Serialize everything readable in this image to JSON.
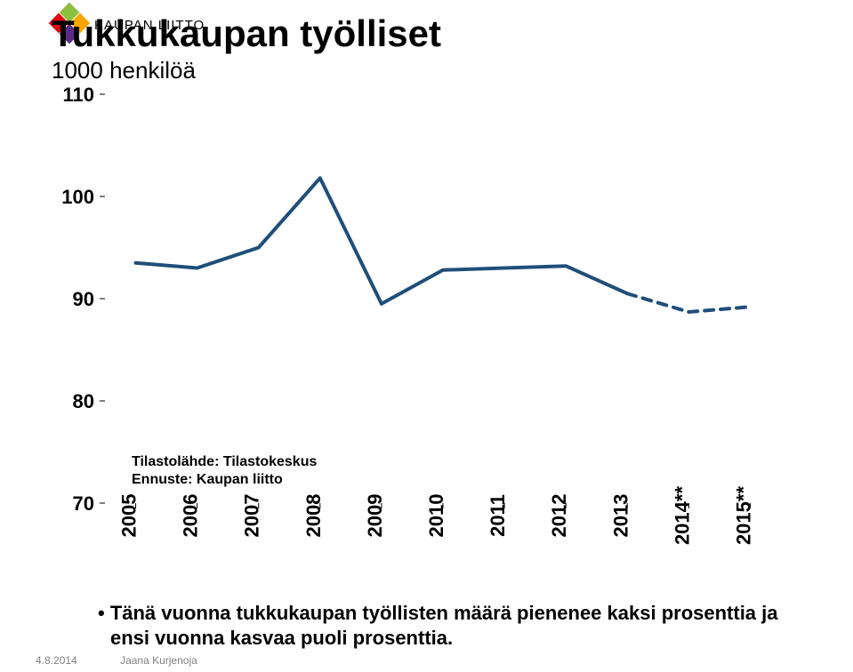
{
  "logo_text": "KAUPAN LIITTO",
  "logo_colors": [
    "#8dbf3f",
    "#f7a600",
    "#e30613",
    "#5b2a86"
  ],
  "title": "Tukkukaupan työlliset",
  "subtitle": "1000 henkilöä",
  "chart": {
    "type": "line",
    "ylim": [
      70,
      110
    ],
    "ytick_step": 10,
    "yticks": [
      70,
      80,
      90,
      100,
      110
    ],
    "categories": [
      "2005",
      "2006",
      "2007",
      "2008",
      "2009",
      "2010",
      "2011",
      "2012",
      "2013",
      "2014**",
      "2015**"
    ],
    "values": [
      93.5,
      93.0,
      95.0,
      101.8,
      89.5,
      92.8,
      93.0,
      93.2,
      90.5,
      88.7,
      89.2
    ],
    "solid_until_index": 8,
    "line_color": "#1f4e79",
    "line_width": 4,
    "dash_pattern": "10 8",
    "tick_color": "#000000",
    "tick_length": 6,
    "axis_color": "#000000",
    "label_color": "#000000",
    "label_fontsize": 22,
    "background_color": "#ffffff",
    "source_text": "Tilastolähde: Tilastokeskus\nEnnuste: Kaupan liitto"
  },
  "bullet_text": "• Tänä vuonna tukkukaupan työllisten määrä pienenee kaksi prosenttia ja ensi vuonna kasvaa puoli prosenttia.",
  "footer": {
    "date": "4.8.2014",
    "author": "Jaana Kurjenoja"
  }
}
